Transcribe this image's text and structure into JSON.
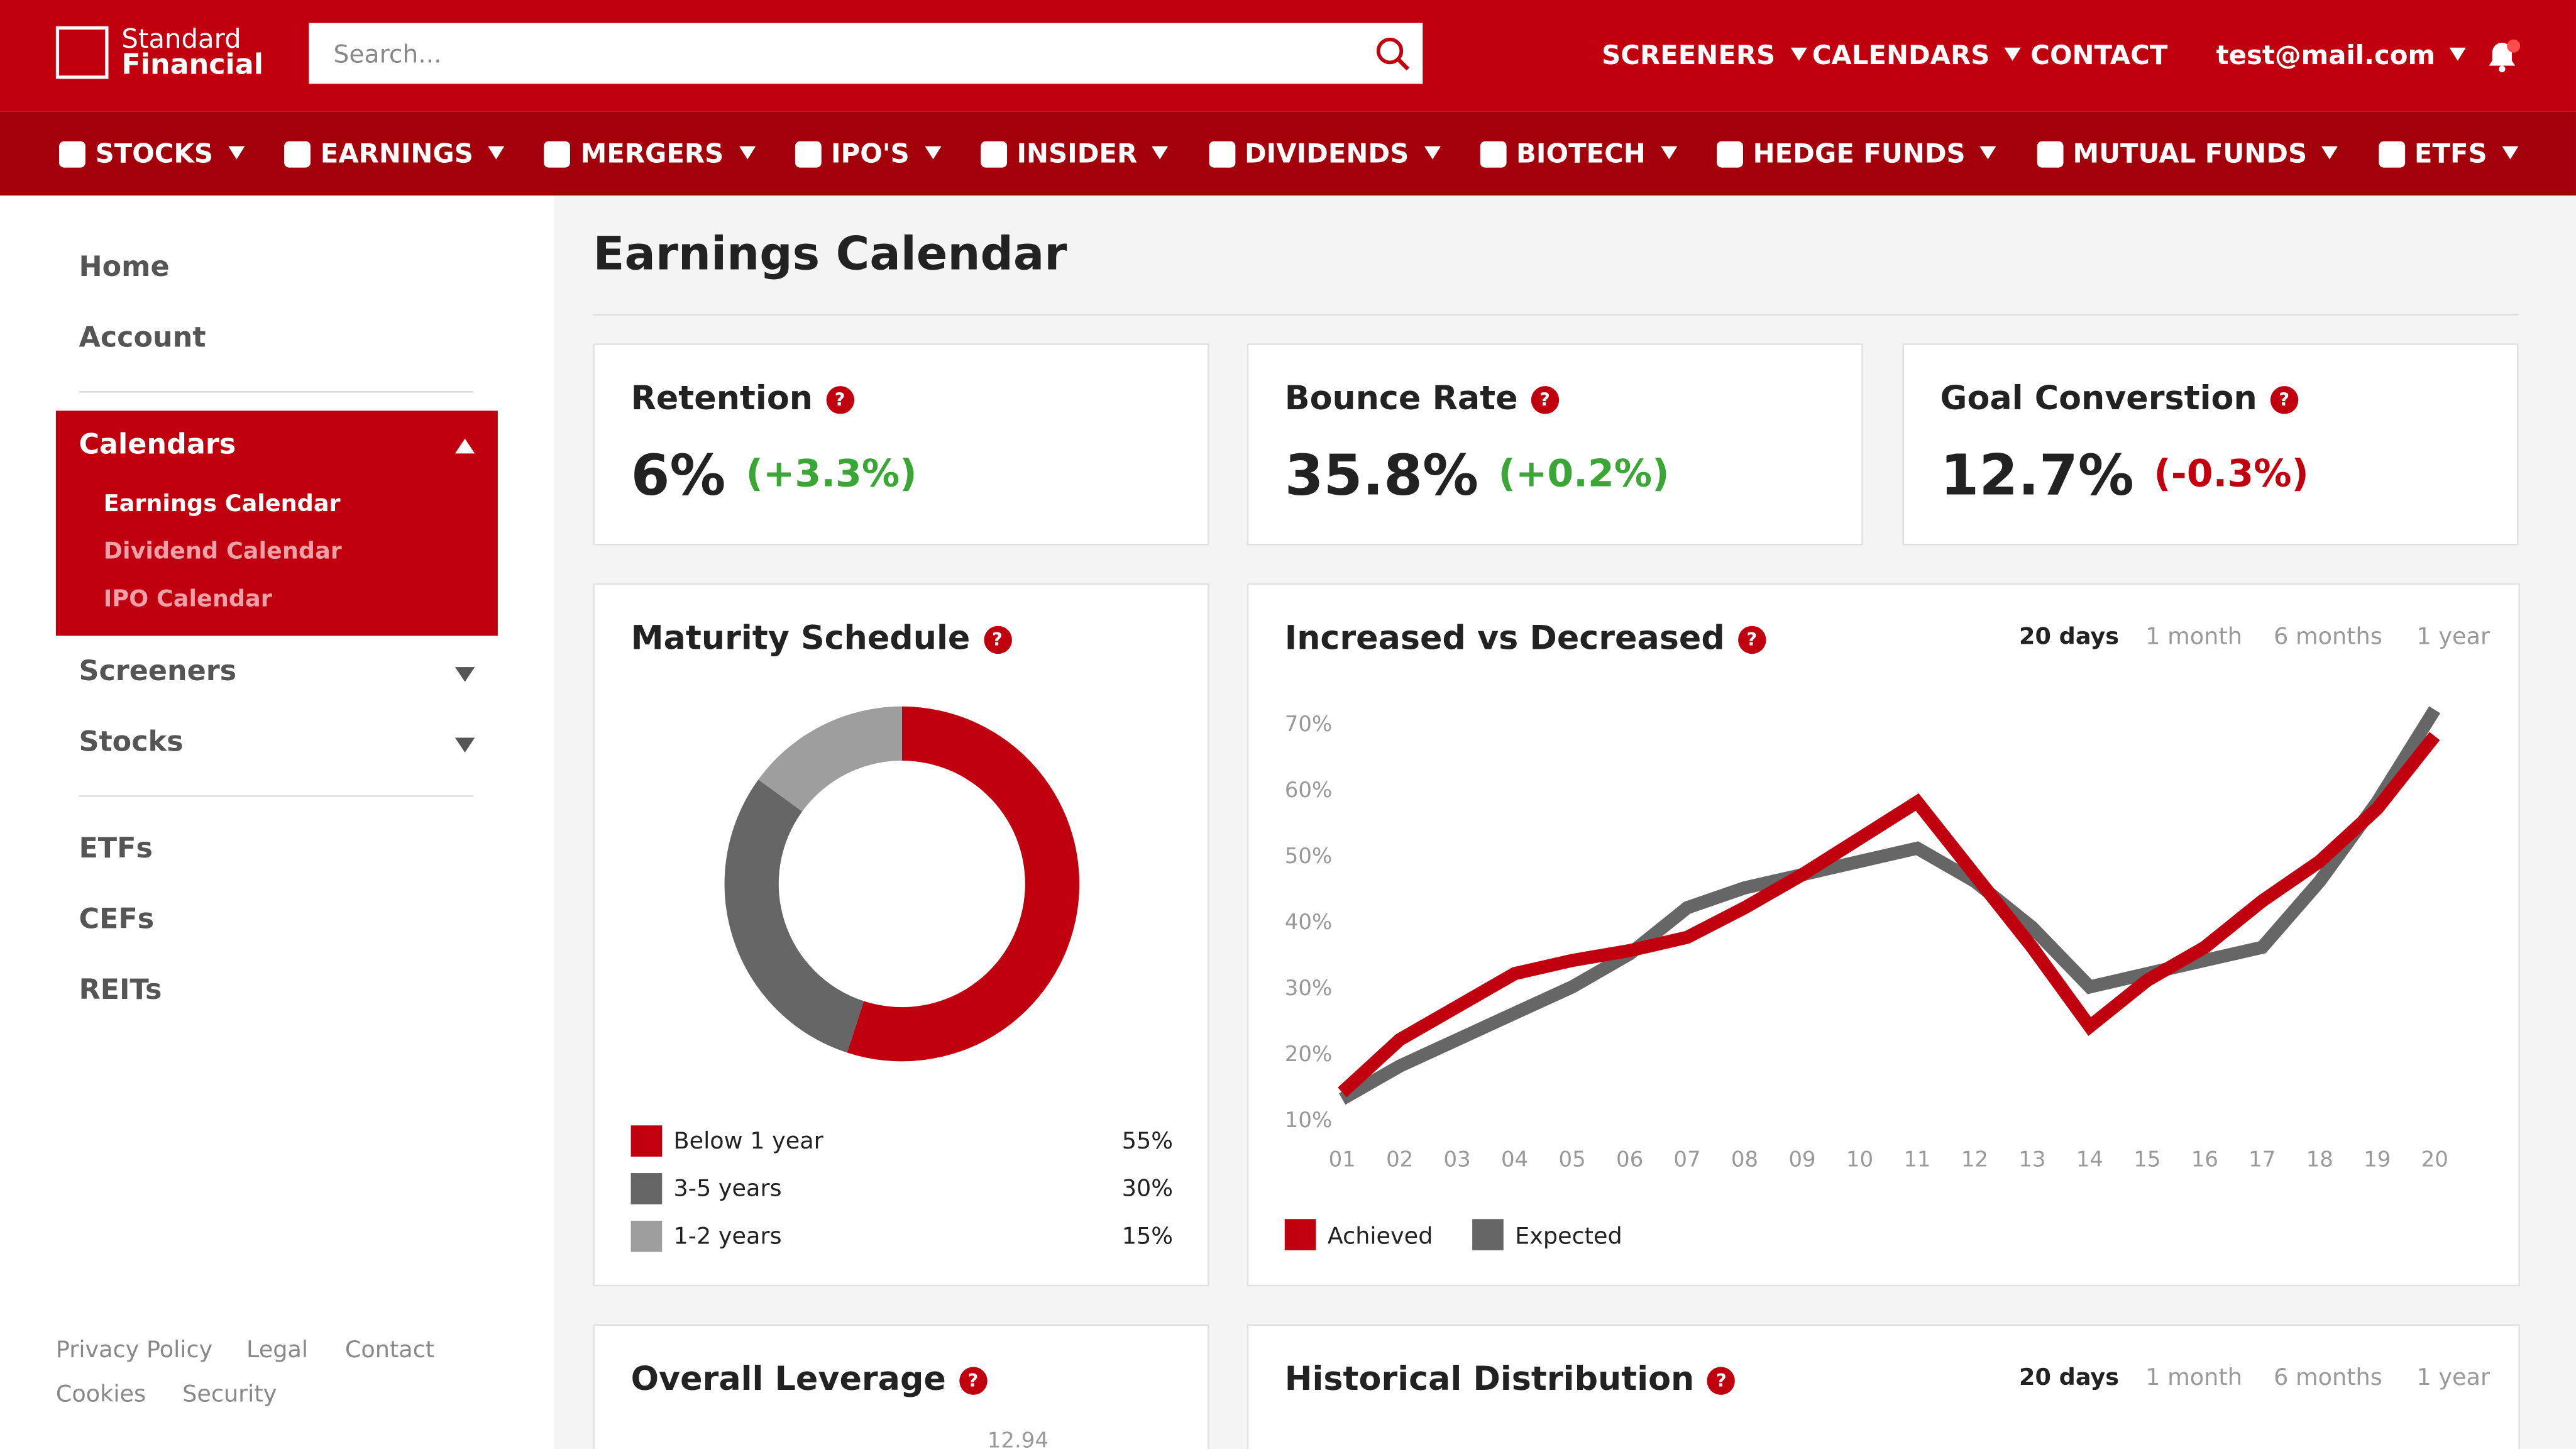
{
  "header": {
    "logo": [
      "Standard",
      "Financial"
    ],
    "search_placeholder": "Search...",
    "top_nav": [
      "SCREENERS",
      "CALENDARS",
      "CONTACT"
    ],
    "user": "test@mail.com"
  },
  "main_nav": [
    "STOCKS",
    "EARNINGS",
    "MERGERS",
    "IPO'S",
    "INSIDER",
    "DIVIDENDS",
    "BIOTECH",
    "HEDGE FUNDS",
    "MUTUAL FUNDS",
    "ETFS"
  ],
  "sidebar": {
    "top": [
      "Home",
      "Account"
    ],
    "section": {
      "title": "Calendars",
      "items": [
        "Earnings Calendar",
        "Dividend Calendar",
        "IPO Calendar"
      ]
    },
    "middle": [
      "Screeners",
      "Stocks"
    ],
    "bottom": [
      "ETFs",
      "CEFs",
      "REITs"
    ],
    "footer": [
      "Privacy Policy",
      "Legal",
      "Contact",
      "Cookies",
      "Security"
    ]
  },
  "page_title": "Earnings Calendar",
  "kpis": [
    {
      "title": "Retention",
      "value": "6%",
      "change": "(+3.3%)",
      "trend": "up"
    },
    {
      "title": "Bounce Rate",
      "value": "35.8%",
      "change": "(+0.2%)",
      "trend": "up"
    },
    {
      "title": "Goal Converstion",
      "value": "12.7%",
      "change": "(-0.3%)",
      "trend": "down"
    }
  ],
  "maturity_chart": {
    "type": "pie",
    "title": "Maturity Schedule",
    "categories": [
      "Below 1 year",
      "3-5 years",
      "1-2 years"
    ],
    "values": [
      55,
      30,
      15
    ],
    "value_labels": [
      "55%",
      "30%",
      "15%"
    ],
    "colors": [
      "#c0000f",
      "#666666",
      "#9e9e9e"
    ]
  },
  "line_chart": {
    "type": "line",
    "title": "Increased vs Decreased",
    "tabs": [
      "20 days",
      "1 month",
      "6 months",
      "1 year"
    ],
    "categories": [
      "01",
      "02",
      "03",
      "04",
      "05",
      "06",
      "07",
      "08",
      "09",
      "10",
      "11",
      "12",
      "13",
      "14",
      "15",
      "16",
      "17",
      "18",
      "19",
      "20"
    ],
    "ylim": [
      10,
      70
    ],
    "yticks": [
      {
        "value": 10,
        "label": "10%"
      },
      {
        "value": 20,
        "label": "20%"
      },
      {
        "value": 30,
        "label": "30%"
      },
      {
        "value": 40,
        "label": "40%"
      },
      {
        "value": 50,
        "label": "50%"
      },
      {
        "value": 60,
        "label": "60%"
      },
      {
        "value": 70,
        "label": "70%"
      }
    ],
    "series": [
      {
        "name": "Expected",
        "color": "#666666",
        "values": [
          13,
          18,
          22,
          26,
          30,
          35,
          42,
          45,
          47,
          49,
          51,
          46,
          39,
          30,
          32,
          34,
          36,
          46,
          58,
          72
        ]
      },
      {
        "name": "Achieved",
        "color": "#c0000f",
        "values": [
          14,
          22,
          27,
          32,
          34,
          35.5,
          37.5,
          42,
          47,
          52.5,
          58,
          47,
          36,
          24,
          31,
          36,
          43,
          49,
          57,
          68
        ]
      }
    ],
    "legend": [
      "Achieved",
      "Expected"
    ]
  },
  "bottom_cards": [
    {
      "title": "Overall Leverage",
      "value": "12.94"
    },
    {
      "title": "Historical Distribution",
      "tabs": [
        "20 days",
        "1 month",
        "6 months",
        "1 year"
      ]
    }
  ]
}
